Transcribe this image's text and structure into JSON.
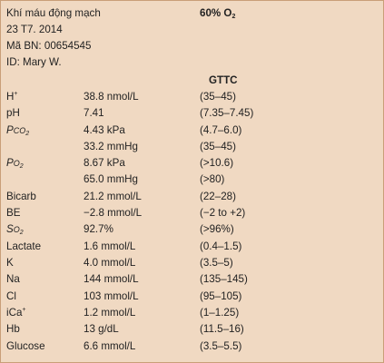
{
  "header": {
    "title": "Khí máu động mạch",
    "date": "23 T7. 2014",
    "patient_no": "Mã BN: 00654545",
    "patient_id": "ID: Mary W.",
    "oxygen_label": "60% O",
    "oxygen_sub": "2"
  },
  "ref_header": "GTTC",
  "rows": [
    {
      "name": "H",
      "sup": "+",
      "value": "38.8 nmol/L",
      "range": "(35–45)"
    },
    {
      "name": "pH",
      "value": "7.41",
      "range": "(7.35–7.45)"
    },
    {
      "name": "P",
      "italic": "CO",
      "sub": "2",
      "value": "4.43 kPa",
      "range": "(4.7–6.0)"
    },
    {
      "value": "33.2 mmHg",
      "range": "(35–45)"
    },
    {
      "name": "P",
      "italic": "O",
      "sub": "2",
      "value": "8.67 kPa",
      "range": "(>10.6)"
    },
    {
      "value": "65.0 mmHg",
      "range": "(>80)"
    },
    {
      "name": "Bicarb",
      "value": "21.2 mmol/L",
      "range": "(22–28)"
    },
    {
      "name": "BE",
      "value": "−2.8 mmol/L",
      "range": "(−2 to +2)"
    },
    {
      "name": "S",
      "italic": "O",
      "sub": "2",
      "value": "92.7%",
      "range": "(>96%)"
    },
    {
      "name": "Lactate",
      "value": "1.6 mmol/L",
      "range": "(0.4–1.5)"
    },
    {
      "name": "K",
      "value": "4.0 mmol/L",
      "range": "(3.5–5)"
    },
    {
      "name": "Na",
      "value": "144 mmol/L",
      "range": "(135–145)"
    },
    {
      "name": "Cl",
      "value": "103 mmol/L",
      "range": "(95–105)"
    },
    {
      "name": "iCa",
      "sup": "+",
      "value": "1.2 mmol/L",
      "range": "(1–1.25)"
    },
    {
      "name": "Hb",
      "value": "13 g/dL",
      "range": "(11.5–16)"
    },
    {
      "name": "Glucose",
      "value": "6.6 mmol/L",
      "range": "(3.5–5.5)"
    }
  ]
}
